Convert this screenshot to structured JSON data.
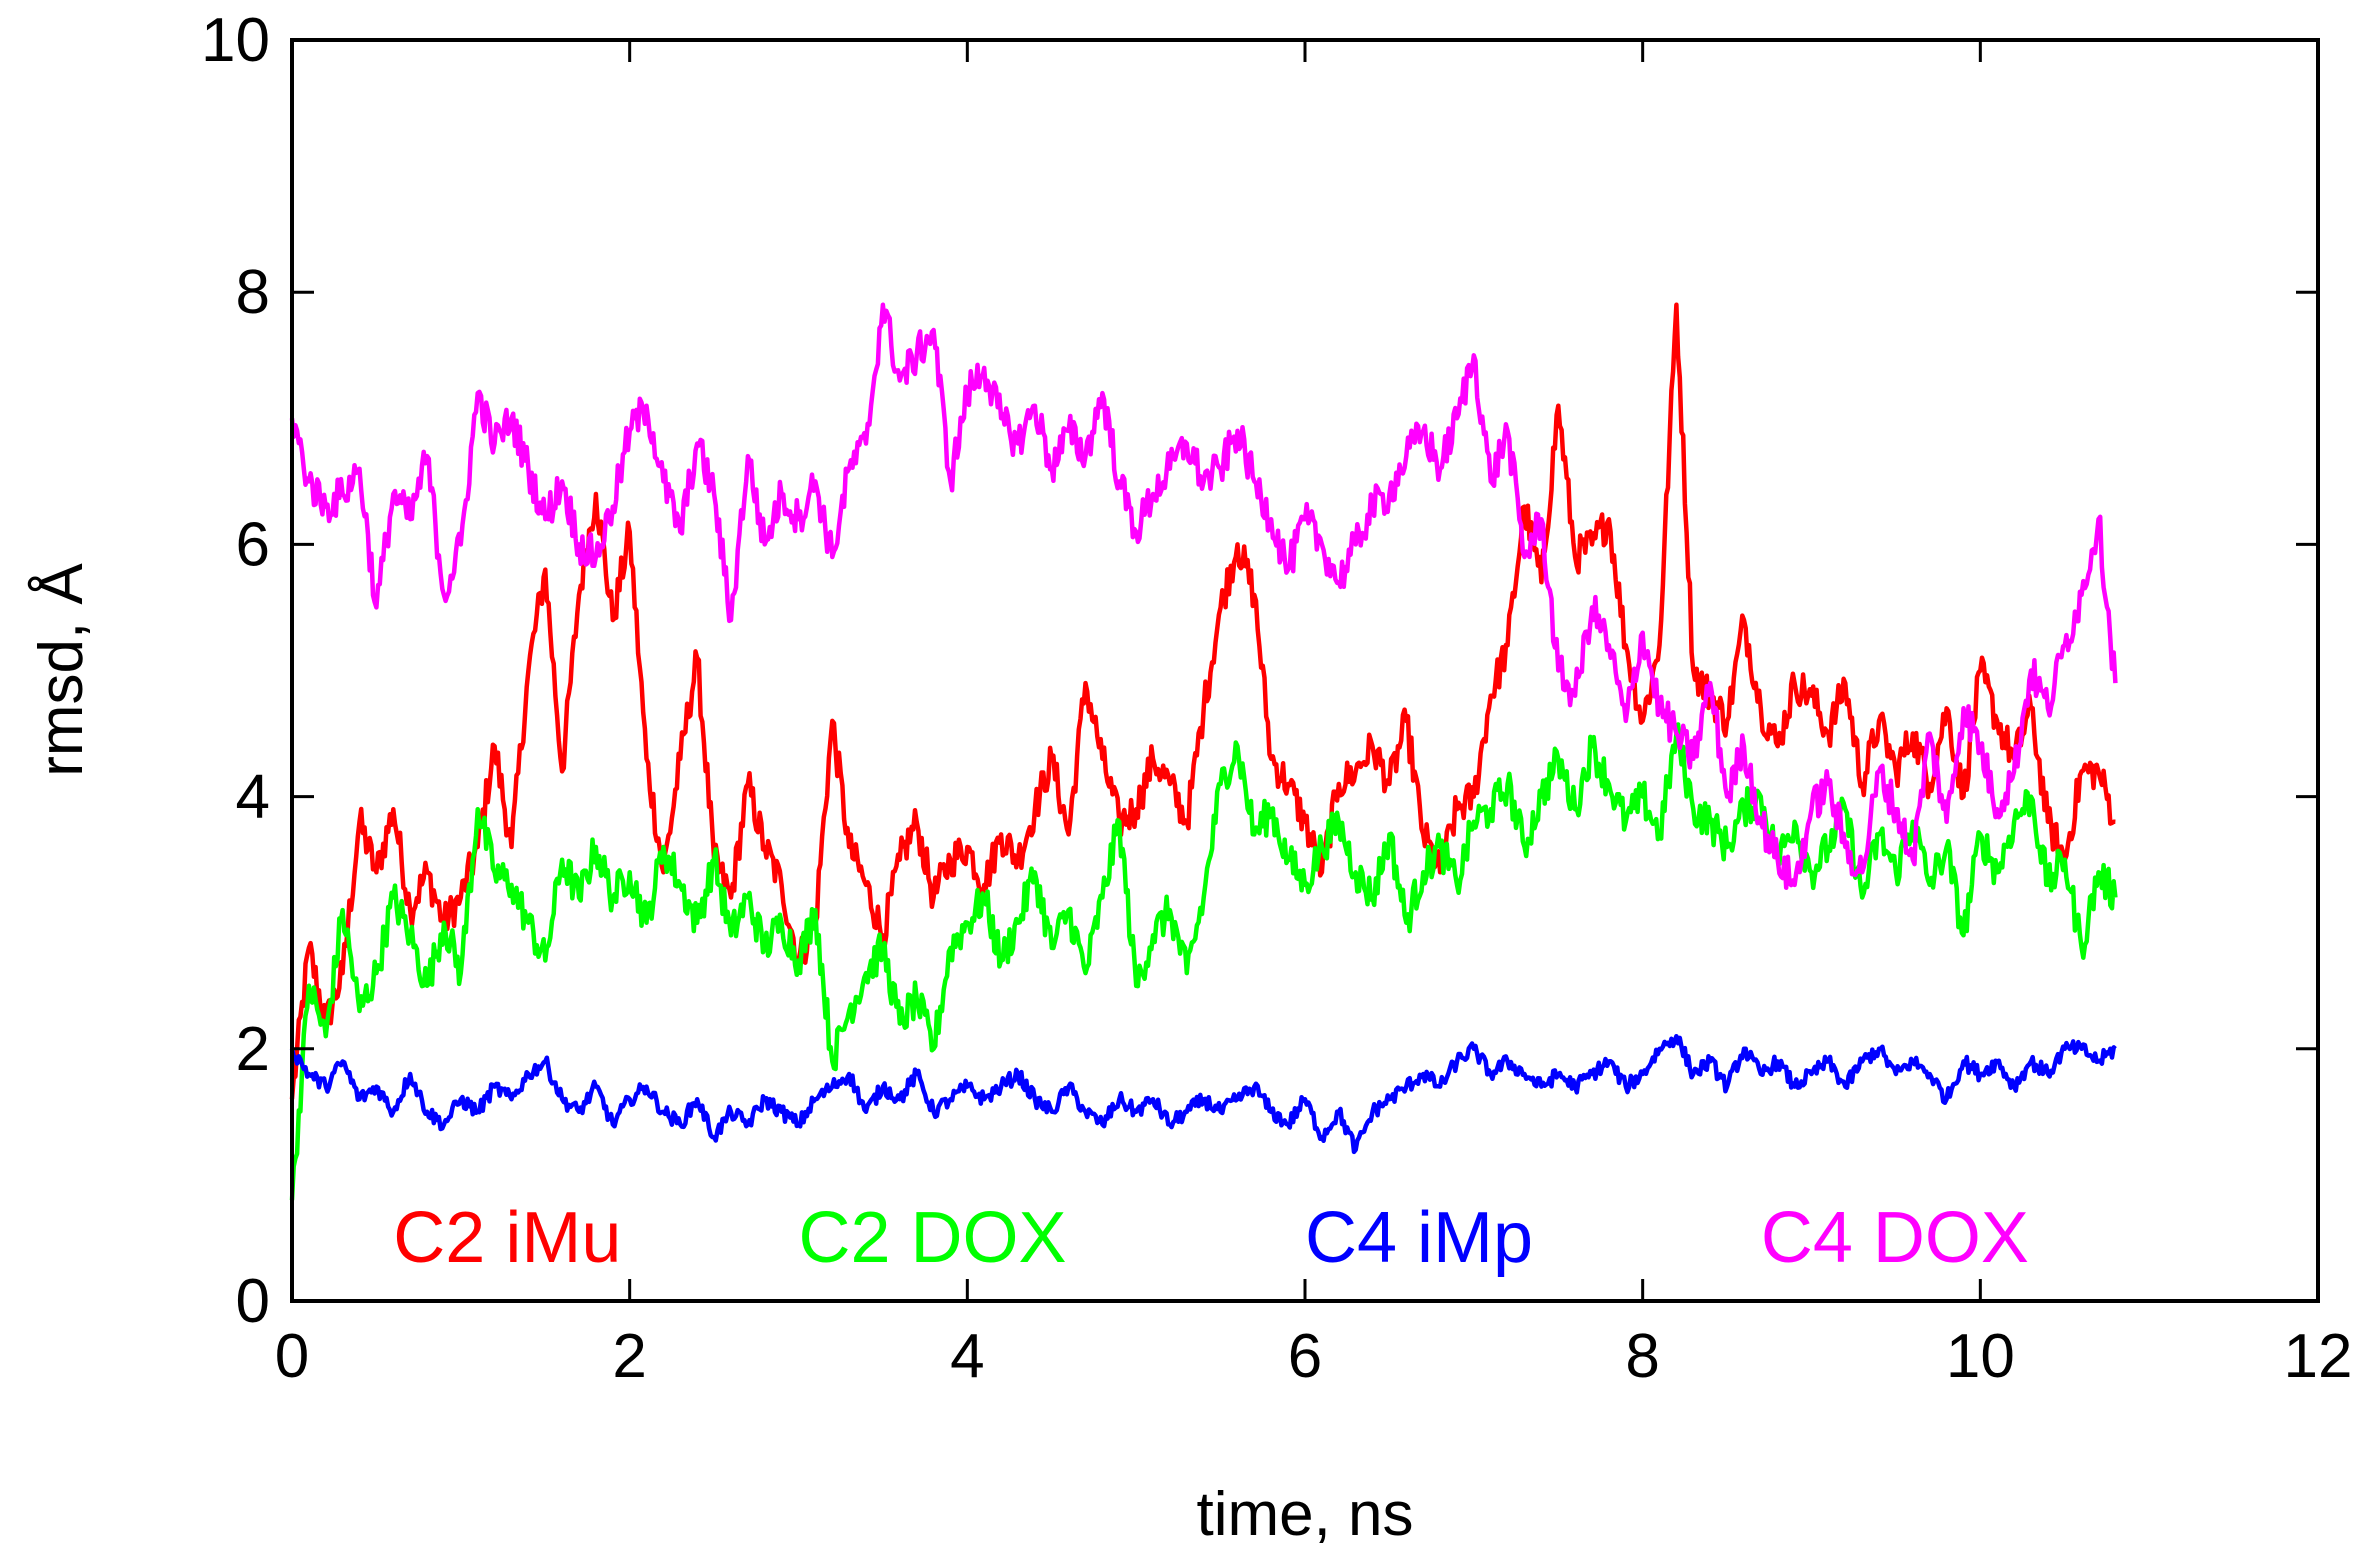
{
  "chart_data": {
    "type": "line",
    "title": "",
    "xlabel": "time, ns",
    "ylabel": "rmsd, Å",
    "xlim": [
      0,
      12
    ],
    "ylim": [
      0,
      10
    ],
    "xticks": [
      0,
      2,
      4,
      6,
      8,
      10,
      12
    ],
    "yticks": [
      0,
      2,
      4,
      6,
      8,
      10
    ],
    "xtick_labels": [
      "0",
      "2",
      "4",
      "6",
      "8",
      "10",
      "12"
    ],
    "ytick_labels": [
      "0",
      "2",
      "4",
      "6",
      "8",
      "10"
    ],
    "grid": false,
    "legend_placement": "inside-bottom",
    "series": [
      {
        "name": "C2 iMu",
        "color": "#ff0000",
        "x": [
          0.0,
          0.1,
          0.2,
          0.3,
          0.4,
          0.5,
          0.6,
          0.7,
          0.8,
          0.9,
          1.0,
          1.1,
          1.2,
          1.3,
          1.4,
          1.5,
          1.6,
          1.7,
          1.8,
          1.9,
          2.0,
          2.1,
          2.2,
          2.3,
          2.4,
          2.5,
          2.6,
          2.7,
          2.8,
          2.9,
          3.0,
          3.1,
          3.2,
          3.3,
          3.4,
          3.5,
          3.6,
          3.7,
          3.8,
          3.9,
          4.0,
          4.1,
          4.2,
          4.3,
          4.4,
          4.5,
          4.6,
          4.7,
          4.8,
          4.9,
          5.0,
          5.1,
          5.2,
          5.3,
          5.4,
          5.5,
          5.6,
          5.7,
          5.8,
          5.9,
          6.0,
          6.1,
          6.2,
          6.3,
          6.4,
          6.5,
          6.6,
          6.7,
          6.8,
          6.9,
          7.0,
          7.1,
          7.2,
          7.3,
          7.4,
          7.5,
          7.6,
          7.7,
          7.8,
          7.9,
          8.0,
          8.1,
          8.2,
          8.3,
          8.4,
          8.5,
          8.6,
          8.7,
          8.8,
          8.9,
          9.0,
          9.1,
          9.2,
          9.3,
          9.4,
          9.5,
          9.6,
          9.7,
          9.8,
          9.9,
          10.0,
          10.1,
          10.2,
          10.3,
          10.4,
          10.5,
          10.6,
          10.7,
          10.8
        ],
        "values": [
          1.6,
          2.8,
          2.2,
          2.6,
          3.8,
          3.4,
          3.9,
          3.1,
          3.4,
          3.0,
          3.2,
          3.6,
          4.4,
          3.6,
          5.0,
          5.8,
          4.2,
          5.6,
          6.4,
          5.4,
          6.1,
          4.3,
          3.4,
          4.3,
          5.1,
          3.5,
          3.2,
          4.1,
          3.6,
          3.3,
          2.7,
          3.0,
          4.6,
          3.6,
          3.3,
          2.9,
          3.5,
          3.8,
          3.2,
          3.5,
          3.6,
          3.3,
          3.7,
          3.5,
          3.9,
          4.3,
          3.7,
          4.9,
          4.3,
          3.8,
          3.9,
          4.3,
          4.1,
          3.8,
          4.7,
          5.5,
          6.0,
          5.6,
          4.3,
          4.1,
          3.8,
          3.4,
          4.1,
          4.2,
          4.4,
          4.1,
          4.6,
          3.7,
          3.4,
          3.9,
          4.0,
          4.8,
          5.2,
          6.3,
          5.7,
          7.1,
          5.9,
          6.0,
          6.2,
          5.2,
          4.6,
          5.2,
          7.9,
          5.0,
          4.8,
          4.6,
          5.4,
          4.7,
          4.4,
          4.9,
          4.8,
          4.5,
          4.9,
          4.1,
          4.6,
          4.2,
          4.5,
          4.1,
          4.7,
          4.0,
          5.0,
          4.6,
          4.3,
          4.7,
          3.8,
          3.5,
          4.2,
          4.2,
          3.8
        ]
      },
      {
        "name": "C2 DOX",
        "color": "#00ff00",
        "x": [
          0.0,
          0.1,
          0.2,
          0.3,
          0.4,
          0.5,
          0.6,
          0.7,
          0.8,
          0.9,
          1.0,
          1.1,
          1.2,
          1.3,
          1.4,
          1.5,
          1.6,
          1.7,
          1.8,
          1.9,
          2.0,
          2.1,
          2.2,
          2.3,
          2.4,
          2.5,
          2.6,
          2.7,
          2.8,
          2.9,
          3.0,
          3.1,
          3.2,
          3.3,
          3.4,
          3.5,
          3.6,
          3.7,
          3.8,
          3.9,
          4.0,
          4.1,
          4.2,
          4.3,
          4.4,
          4.5,
          4.6,
          4.7,
          4.8,
          4.9,
          5.0,
          5.1,
          5.2,
          5.3,
          5.4,
          5.5,
          5.6,
          5.7,
          5.8,
          5.9,
          6.0,
          6.1,
          6.2,
          6.3,
          6.4,
          6.5,
          6.6,
          6.7,
          6.8,
          6.9,
          7.0,
          7.1,
          7.2,
          7.3,
          7.4,
          7.5,
          7.6,
          7.7,
          7.8,
          7.9,
          8.0,
          8.1,
          8.2,
          8.3,
          8.4,
          8.5,
          8.6,
          8.7,
          8.8,
          8.9,
          9.0,
          9.1,
          9.2,
          9.3,
          9.4,
          9.5,
          9.6,
          9.7,
          9.8,
          9.9,
          10.0,
          10.1,
          10.2,
          10.3,
          10.4,
          10.5,
          10.6,
          10.7,
          10.8
        ],
        "values": [
          0.8,
          2.5,
          2.1,
          3.1,
          2.3,
          2.6,
          3.2,
          2.9,
          2.5,
          3.0,
          2.6,
          3.9,
          3.4,
          3.3,
          3.0,
          2.7,
          3.5,
          3.2,
          3.6,
          3.2,
          3.4,
          3.0,
          3.6,
          3.3,
          3.0,
          3.5,
          2.9,
          3.2,
          2.8,
          3.0,
          2.7,
          3.1,
          1.9,
          2.3,
          2.6,
          2.8,
          2.2,
          2.4,
          2.0,
          2.8,
          3.0,
          3.2,
          2.7,
          3.0,
          3.4,
          2.8,
          3.1,
          2.6,
          3.2,
          3.8,
          2.5,
          2.9,
          3.1,
          2.6,
          3.2,
          4.1,
          4.4,
          3.7,
          3.9,
          3.5,
          3.3,
          3.6,
          3.8,
          3.4,
          3.2,
          3.7,
          3.0,
          3.4,
          3.6,
          3.3,
          3.8,
          3.9,
          4.1,
          3.6,
          4.0,
          4.3,
          3.9,
          4.4,
          4.1,
          3.8,
          4.0,
          3.7,
          4.5,
          3.9,
          3.8,
          3.6,
          3.9,
          4.0,
          3.5,
          3.8,
          3.4,
          3.6,
          3.9,
          3.2,
          3.7,
          3.4,
          3.8,
          3.3,
          3.6,
          2.9,
          3.7,
          3.4,
          3.8,
          4.0,
          3.3,
          3.5,
          2.8,
          3.4,
          3.2
        ]
      },
      {
        "name": "C4 iMp",
        "color": "#0000ff",
        "x": [
          0.0,
          0.1,
          0.2,
          0.3,
          0.4,
          0.5,
          0.6,
          0.7,
          0.8,
          0.9,
          1.0,
          1.1,
          1.2,
          1.3,
          1.4,
          1.5,
          1.6,
          1.7,
          1.8,
          1.9,
          2.0,
          2.1,
          2.2,
          2.3,
          2.4,
          2.5,
          2.6,
          2.7,
          2.8,
          2.9,
          3.0,
          3.1,
          3.2,
          3.3,
          3.4,
          3.5,
          3.6,
          3.7,
          3.8,
          3.9,
          4.0,
          4.1,
          4.2,
          4.3,
          4.4,
          4.5,
          4.6,
          4.7,
          4.8,
          4.9,
          5.0,
          5.1,
          5.2,
          5.3,
          5.4,
          5.5,
          5.6,
          5.7,
          5.8,
          5.9,
          6.0,
          6.1,
          6.2,
          6.3,
          6.4,
          6.5,
          6.6,
          6.7,
          6.8,
          6.9,
          7.0,
          7.1,
          7.2,
          7.3,
          7.4,
          7.5,
          7.6,
          7.7,
          7.8,
          7.9,
          8.0,
          8.1,
          8.2,
          8.3,
          8.4,
          8.5,
          8.6,
          8.7,
          8.8,
          8.9,
          9.0,
          9.1,
          9.2,
          9.3,
          9.4,
          9.5,
          9.6,
          9.7,
          9.8,
          9.9,
          10.0,
          10.1,
          10.2,
          10.3,
          10.4,
          10.5,
          10.6,
          10.7,
          10.8
        ],
        "values": [
          2.0,
          1.8,
          1.7,
          1.9,
          1.6,
          1.7,
          1.5,
          1.8,
          1.5,
          1.4,
          1.6,
          1.5,
          1.7,
          1.6,
          1.8,
          1.9,
          1.6,
          1.5,
          1.7,
          1.4,
          1.6,
          1.7,
          1.5,
          1.4,
          1.6,
          1.3,
          1.5,
          1.4,
          1.6,
          1.5,
          1.4,
          1.6,
          1.7,
          1.8,
          1.5,
          1.7,
          1.6,
          1.8,
          1.5,
          1.6,
          1.7,
          1.6,
          1.7,
          1.8,
          1.6,
          1.5,
          1.7,
          1.5,
          1.4,
          1.6,
          1.5,
          1.6,
          1.4,
          1.5,
          1.6,
          1.5,
          1.6,
          1.7,
          1.5,
          1.4,
          1.6,
          1.3,
          1.5,
          1.2,
          1.5,
          1.6,
          1.7,
          1.8,
          1.7,
          1.9,
          2.0,
          1.8,
          1.9,
          1.8,
          1.7,
          1.8,
          1.7,
          1.8,
          1.9,
          1.7,
          1.8,
          2.0,
          2.1,
          1.8,
          1.9,
          1.7,
          2.0,
          1.8,
          1.9,
          1.7,
          1.8,
          1.9,
          1.7,
          1.9,
          2.0,
          1.8,
          1.9,
          1.8,
          1.6,
          1.9,
          1.8,
          1.9,
          1.7,
          1.9,
          1.8,
          2.0,
          2.0,
          1.9,
          2.0
        ]
      },
      {
        "name": "C4 DOX",
        "color": "#ff00ff",
        "x": [
          0.0,
          0.1,
          0.2,
          0.3,
          0.4,
          0.5,
          0.6,
          0.7,
          0.8,
          0.9,
          1.0,
          1.1,
          1.2,
          1.3,
          1.4,
          1.5,
          1.6,
          1.7,
          1.8,
          1.9,
          2.0,
          2.1,
          2.2,
          2.3,
          2.4,
          2.5,
          2.6,
          2.7,
          2.8,
          2.9,
          3.0,
          3.1,
          3.2,
          3.3,
          3.4,
          3.5,
          3.6,
          3.7,
          3.8,
          3.9,
          4.0,
          4.1,
          4.2,
          4.3,
          4.4,
          4.5,
          4.6,
          4.7,
          4.8,
          4.9,
          5.0,
          5.1,
          5.2,
          5.3,
          5.4,
          5.5,
          5.6,
          5.7,
          5.8,
          5.9,
          6.0,
          6.1,
          6.2,
          6.3,
          6.4,
          6.5,
          6.6,
          6.7,
          6.8,
          6.9,
          7.0,
          7.1,
          7.2,
          7.3,
          7.4,
          7.5,
          7.6,
          7.7,
          7.8,
          7.9,
          8.0,
          8.1,
          8.2,
          8.3,
          8.4,
          8.5,
          8.6,
          8.7,
          8.8,
          8.9,
          9.0,
          9.1,
          9.2,
          9.3,
          9.4,
          9.5,
          9.6,
          9.7,
          9.8,
          9.9,
          10.0,
          10.1,
          10.2,
          10.3,
          10.4,
          10.5,
          10.6,
          10.7,
          10.8
        ],
        "values": [
          7.0,
          6.5,
          6.3,
          6.4,
          6.6,
          5.5,
          6.4,
          6.2,
          6.7,
          5.6,
          6.0,
          7.2,
          6.8,
          7.0,
          6.6,
          6.2,
          6.5,
          6.0,
          5.9,
          6.3,
          6.9,
          7.1,
          6.5,
          6.1,
          6.8,
          6.4,
          5.4,
          6.7,
          6.0,
          6.4,
          6.2,
          6.5,
          5.9,
          6.6,
          6.8,
          7.9,
          7.3,
          7.5,
          7.7,
          6.5,
          7.2,
          7.4,
          7.0,
          6.8,
          7.1,
          6.6,
          6.9,
          6.7,
          7.2,
          6.5,
          6.1,
          6.4,
          6.6,
          6.8,
          6.5,
          6.6,
          6.9,
          6.5,
          6.2,
          5.8,
          6.2,
          6.0,
          5.7,
          6.0,
          6.3,
          6.4,
          6.7,
          6.9,
          6.6,
          7.0,
          7.5,
          6.5,
          6.9,
          5.9,
          6.2,
          5.0,
          4.8,
          5.5,
          5.2,
          4.6,
          5.3,
          4.7,
          4.5,
          4.3,
          4.9,
          4.0,
          4.4,
          3.8,
          3.5,
          3.3,
          3.9,
          4.1,
          3.6,
          3.4,
          4.2,
          3.9,
          3.5,
          4.5,
          3.8,
          4.7,
          4.4,
          3.9,
          4.2,
          5.0,
          4.7,
          5.2,
          5.6,
          6.2,
          4.9
        ]
      }
    ]
  }
}
